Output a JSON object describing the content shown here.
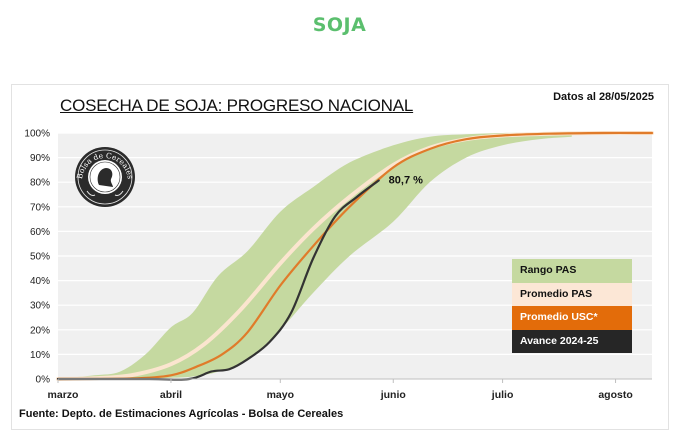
{
  "page": {
    "title": "SOJA"
  },
  "chart_data": {
    "type": "line",
    "title": "COSECHA DE SOJA: PROGRESO NACIONAL",
    "date_label": "Datos al 28/05/2025",
    "source": "Fuente: Depto. de Estimaciones Agrícolas - Bolsa de Cereales",
    "logo_text": "Bolsa de Cereales",
    "xlabel": "",
    "ylabel": "",
    "x_unit": "days since 1 March",
    "xlim": [
      0,
      163
    ],
    "ylim": [
      0,
      100
    ],
    "grid": true,
    "y_ticks": [
      {
        "value": 0,
        "label": "0%"
      },
      {
        "value": 10,
        "label": "10%"
      },
      {
        "value": 20,
        "label": "20%"
      },
      {
        "value": 30,
        "label": "30%"
      },
      {
        "value": 40,
        "label": "40%"
      },
      {
        "value": 50,
        "label": "50%"
      },
      {
        "value": 60,
        "label": "60%"
      },
      {
        "value": 70,
        "label": "70%"
      },
      {
        "value": 80,
        "label": "80%"
      },
      {
        "value": 90,
        "label": "90%"
      },
      {
        "value": 100,
        "label": "100%"
      }
    ],
    "x_ticks": [
      {
        "value": 0,
        "label": "marzo"
      },
      {
        "value": 31,
        "label": "abril"
      },
      {
        "value": 61,
        "label": "mayo"
      },
      {
        "value": 92,
        "label": "junio"
      },
      {
        "value": 122,
        "label": "julio"
      },
      {
        "value": 153,
        "label": "agosto"
      }
    ],
    "legend_position": "right",
    "series": [
      {
        "name": "Rango PAS",
        "kind": "band",
        "color": "#c5d9a0",
        "x": [
          0,
          10,
          17,
          24,
          31,
          37,
          44,
          52,
          61,
          70,
          80,
          92,
          102,
          112,
          122,
          132,
          141
        ],
        "upper": [
          0,
          1.5,
          3,
          10,
          21,
          27,
          42,
          52,
          68,
          78,
          88,
          95,
          98.5,
          99.5,
          100,
          100,
          99.5
        ],
        "lower": [
          0,
          0,
          0,
          0,
          0.5,
          1,
          3,
          8,
          20,
          35,
          50,
          64,
          80,
          90,
          95,
          97.5,
          98.5
        ]
      },
      {
        "name": "Promedio PAS",
        "kind": "line",
        "color": "#fbe5cf",
        "x": [
          0,
          10,
          20,
          31,
          40,
          50,
          61,
          70,
          80,
          92,
          102,
          112,
          122,
          135,
          150,
          163
        ],
        "y": [
          0,
          0.3,
          1.5,
          6,
          14,
          28,
          47,
          61,
          74,
          87,
          94,
          97.5,
          99,
          99.7,
          100,
          100
        ]
      },
      {
        "name": "Promedio  USC*",
        "kind": "line",
        "color": "#e07b2a",
        "x": [
          0,
          20,
          31,
          38,
          45,
          52,
          61,
          70,
          80,
          92,
          102,
          112,
          122,
          135,
          150,
          163
        ],
        "y": [
          0,
          0.2,
          1.5,
          5,
          10,
          19,
          38,
          54,
          70,
          86,
          93.5,
          97.5,
          99,
          99.7,
          100,
          100
        ]
      },
      {
        "name": "Avance 2024-25",
        "kind": "line",
        "color": "#333333",
        "x": [
          0,
          25,
          36,
          42,
          47,
          52,
          58,
          64,
          70,
          76,
          82,
          88
        ],
        "y": [
          0,
          0,
          0,
          3,
          4,
          8,
          15,
          27,
          49,
          66,
          74,
          80.7
        ]
      }
    ],
    "annotations": [
      {
        "x": 88,
        "y": 80.7,
        "text": "80,7 %"
      }
    ],
    "legend": [
      {
        "label": "Rango PAS",
        "bg": "#c5d9a0",
        "fg": "#111111"
      },
      {
        "label": "Promedio PAS",
        "bg": "#fce7d6",
        "fg": "#111111"
      },
      {
        "label": "Promedio  USC*",
        "bg": "#e36c0a",
        "fg": "#ffffff"
      },
      {
        "label": "Avance 2024-25",
        "bg": "#262626",
        "fg": "#ffffff"
      }
    ]
  }
}
